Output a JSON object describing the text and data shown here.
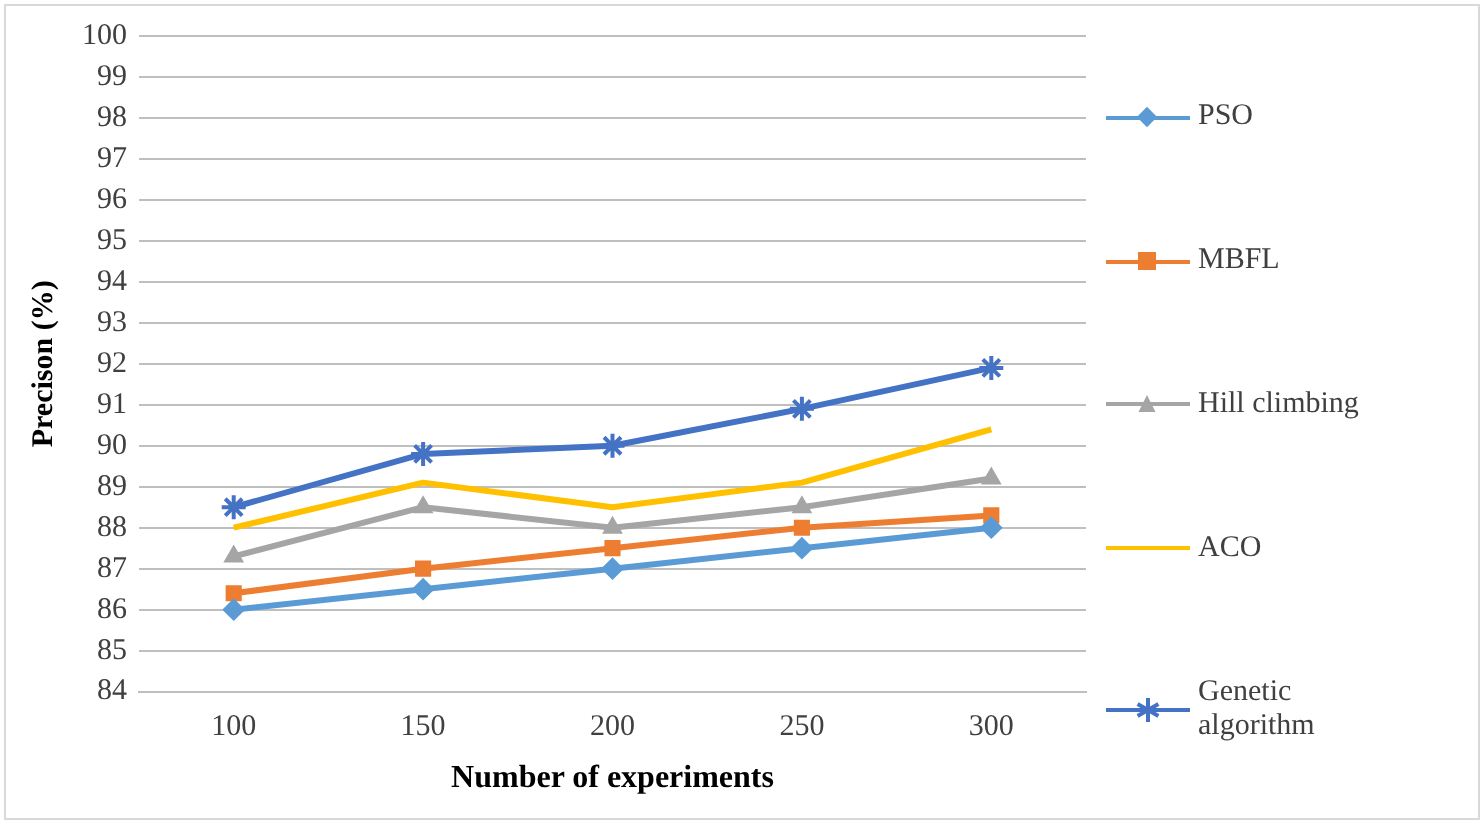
{
  "chart_data": {
    "type": "line",
    "xlabel": "Number of experiments",
    "ylabel": "Precison (%)",
    "categories": [
      "100",
      "150",
      "200",
      "250",
      "300"
    ],
    "series": [
      {
        "name": "PSO",
        "color": "#5b9bd5",
        "marker": "diamond",
        "values": [
          86,
          86.5,
          87,
          87.5,
          88
        ]
      },
      {
        "name": "MBFL",
        "color": "#ed7d31",
        "marker": "square",
        "values": [
          86.4,
          87,
          87.5,
          88,
          88.3
        ]
      },
      {
        "name": "Hill climbing",
        "color": "#a5a5a5",
        "marker": "triangle",
        "values": [
          87.3,
          88.5,
          88,
          88.5,
          89.2
        ]
      },
      {
        "name": "ACO",
        "color": "#ffc000",
        "marker": "none",
        "values": [
          88,
          89.1,
          88.5,
          89.1,
          90.4
        ]
      },
      {
        "name": "Genetic algorithm",
        "color": "#4472c4",
        "marker": "cross",
        "values": [
          88.5,
          89.8,
          90,
          90.9,
          91.9
        ]
      }
    ],
    "ylim": [
      84,
      100
    ],
    "yticks": [
      84,
      85,
      86,
      87,
      88,
      89,
      90,
      91,
      92,
      93,
      94,
      95,
      96,
      97,
      98,
      99,
      100
    ],
    "grid": "y",
    "legend": "right"
  }
}
